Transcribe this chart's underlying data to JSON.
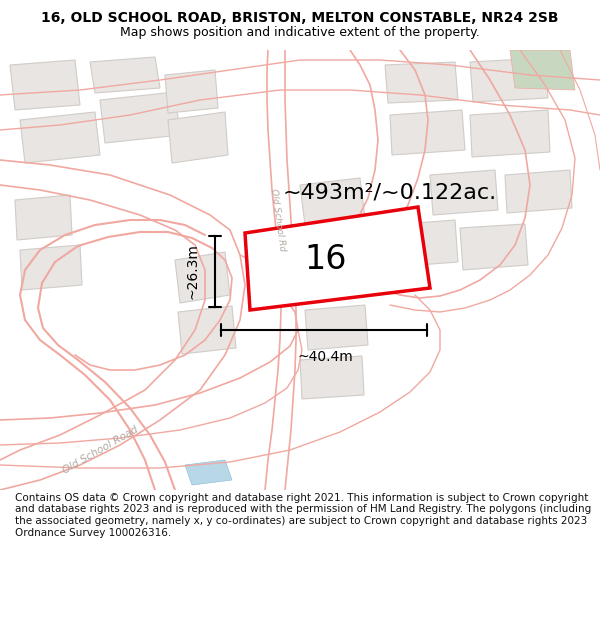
{
  "title_line1": "16, OLD SCHOOL ROAD, BRISTON, MELTON CONSTABLE, NR24 2SB",
  "title_line2": "Map shows position and indicative extent of the property.",
  "area_label": "~493m²/~0.122ac.",
  "plot_number": "16",
  "dim_width": "~40.4m",
  "dim_height": "~26.3m",
  "road_label_diag": "Old School Road",
  "road_label_bottom": "Old School Road",
  "footer_text": "Contains OS data © Crown copyright and database right 2021. This information is subject to Crown copyright and database rights 2023 and is reproduced with the permission of HM Land Registry. The polygons (including the associated geometry, namely x, y co-ordinates) are subject to Crown copyright and database rights 2023 Ordnance Survey 100026316.",
  "bg_color": "#ffffff",
  "map_bg": "#ffffff",
  "plot_fill": "#ffffff",
  "plot_edge": "#e8000a",
  "road_line_color": "#f0a8a0",
  "building_fill": "#e8e5e2",
  "building_edge": "#d0ccc8",
  "road_label_color": "#b0a8a0",
  "title_color": "#000000",
  "dim_color": "#000000",
  "green_fill": "#c8d8c0",
  "blue_fill": "#b8d8e8",
  "title_fontsize": 10,
  "subtitle_fontsize": 9,
  "area_fontsize": 16,
  "plot_num_fontsize": 24,
  "dim_fontsize": 10,
  "footer_fontsize": 7.5
}
